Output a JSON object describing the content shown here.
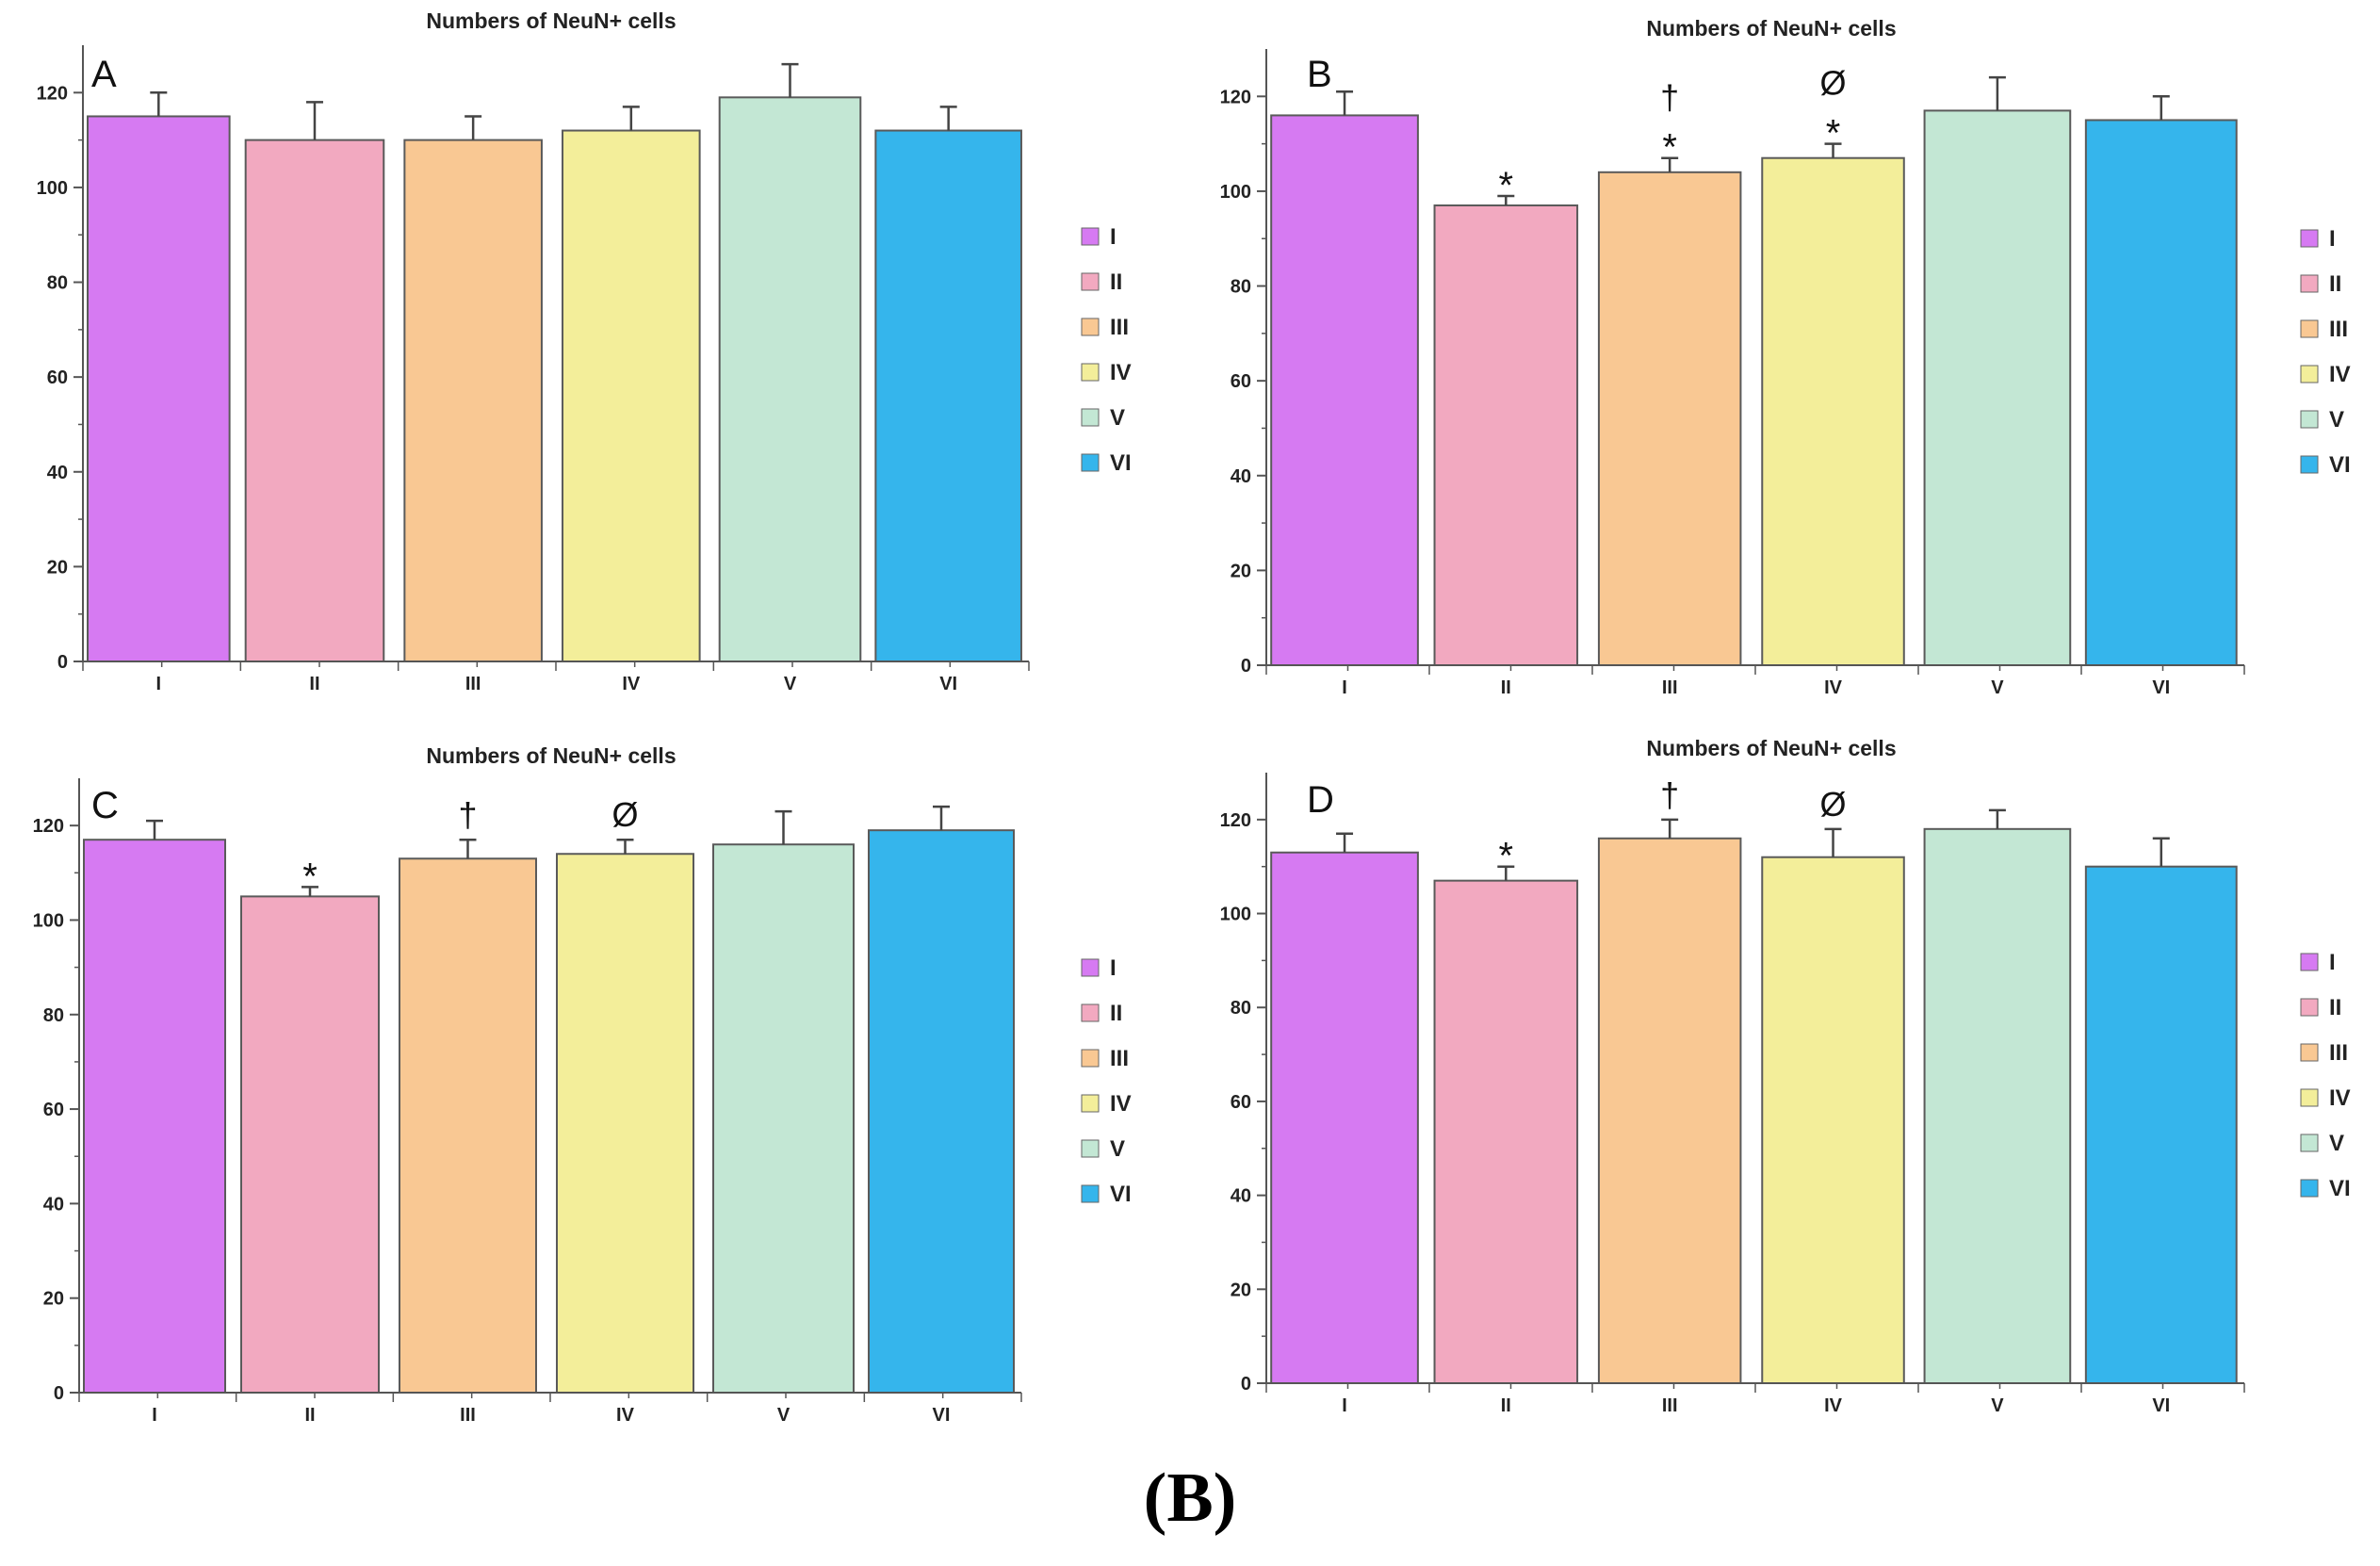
{
  "caption": "(B)",
  "chart_data": [
    {
      "type": "bar",
      "panel_label": "A",
      "title": "Numbers of NeuN+ cells",
      "categories": [
        "I",
        "II",
        "III",
        "IV",
        "V",
        "VI"
      ],
      "values": [
        115,
        110,
        110,
        112,
        119,
        112
      ],
      "errors": [
        5,
        8,
        5,
        5,
        7,
        5
      ],
      "annotations": [
        [],
        [],
        [],
        [],
        [],
        []
      ],
      "ylim": [
        0,
        130
      ],
      "yticks": [
        0,
        20,
        40,
        60,
        80,
        100,
        120
      ],
      "xlabel": "",
      "ylabel": "",
      "legend": [
        "I",
        "II",
        "III",
        "IV",
        "V",
        "VI"
      ],
      "legend_position": "right"
    },
    {
      "type": "bar",
      "panel_label": "B",
      "title": "Numbers of NeuN+ cells",
      "categories": [
        "I",
        "II",
        "III",
        "IV",
        "V",
        "VI"
      ],
      "values": [
        116,
        97,
        104,
        107,
        117,
        115
      ],
      "errors": [
        5,
        2,
        3,
        3,
        7,
        5
      ],
      "annotations": [
        [],
        [
          "*"
        ],
        [
          "*",
          "†"
        ],
        [
          "*",
          "Ø"
        ],
        [],
        []
      ],
      "ylim": [
        0,
        130
      ],
      "yticks": [
        0,
        20,
        40,
        60,
        80,
        100,
        120
      ],
      "xlabel": "",
      "ylabel": "",
      "legend": [
        "I",
        "II",
        "III",
        "IV",
        "V",
        "VI"
      ],
      "legend_position": "right"
    },
    {
      "type": "bar",
      "panel_label": "C",
      "title": "Numbers of NeuN+ cells",
      "categories": [
        "I",
        "II",
        "III",
        "IV",
        "V",
        "VI"
      ],
      "values": [
        117,
        105,
        113,
        114,
        116,
        119
      ],
      "errors": [
        4,
        2,
        4,
        3,
        7,
        5
      ],
      "annotations": [
        [],
        [
          "*"
        ],
        [
          "†"
        ],
        [
          "Ø"
        ],
        [],
        []
      ],
      "ylim": [
        0,
        130
      ],
      "yticks": [
        0,
        20,
        40,
        60,
        80,
        100,
        120
      ],
      "xlabel": "",
      "ylabel": "",
      "legend": [
        "I",
        "II",
        "III",
        "IV",
        "V",
        "VI"
      ],
      "legend_position": "right"
    },
    {
      "type": "bar",
      "panel_label": "D",
      "title": "Numbers of NeuN+ cells",
      "categories": [
        "I",
        "II",
        "III",
        "IV",
        "V",
        "VI"
      ],
      "values": [
        113,
        107,
        116,
        112,
        118,
        110
      ],
      "errors": [
        4,
        3,
        4,
        6,
        4,
        6
      ],
      "annotations": [
        [],
        [
          "*"
        ],
        [
          "†"
        ],
        [
          "Ø"
        ],
        [],
        []
      ],
      "ylim": [
        0,
        130
      ],
      "yticks": [
        0,
        20,
        40,
        60,
        80,
        100,
        120
      ],
      "xlabel": "",
      "ylabel": "",
      "legend": [
        "I",
        "II",
        "III",
        "IV",
        "V",
        "VI"
      ],
      "legend_position": "right"
    }
  ],
  "colors": {
    "I": "#d67af2",
    "II": "#f2a9c0",
    "III": "#f9c893",
    "IV": "#f3ee9a",
    "V": "#c3e7d4",
    "VI": "#35b5ec",
    "axis": "#555555",
    "text": "#222222"
  }
}
